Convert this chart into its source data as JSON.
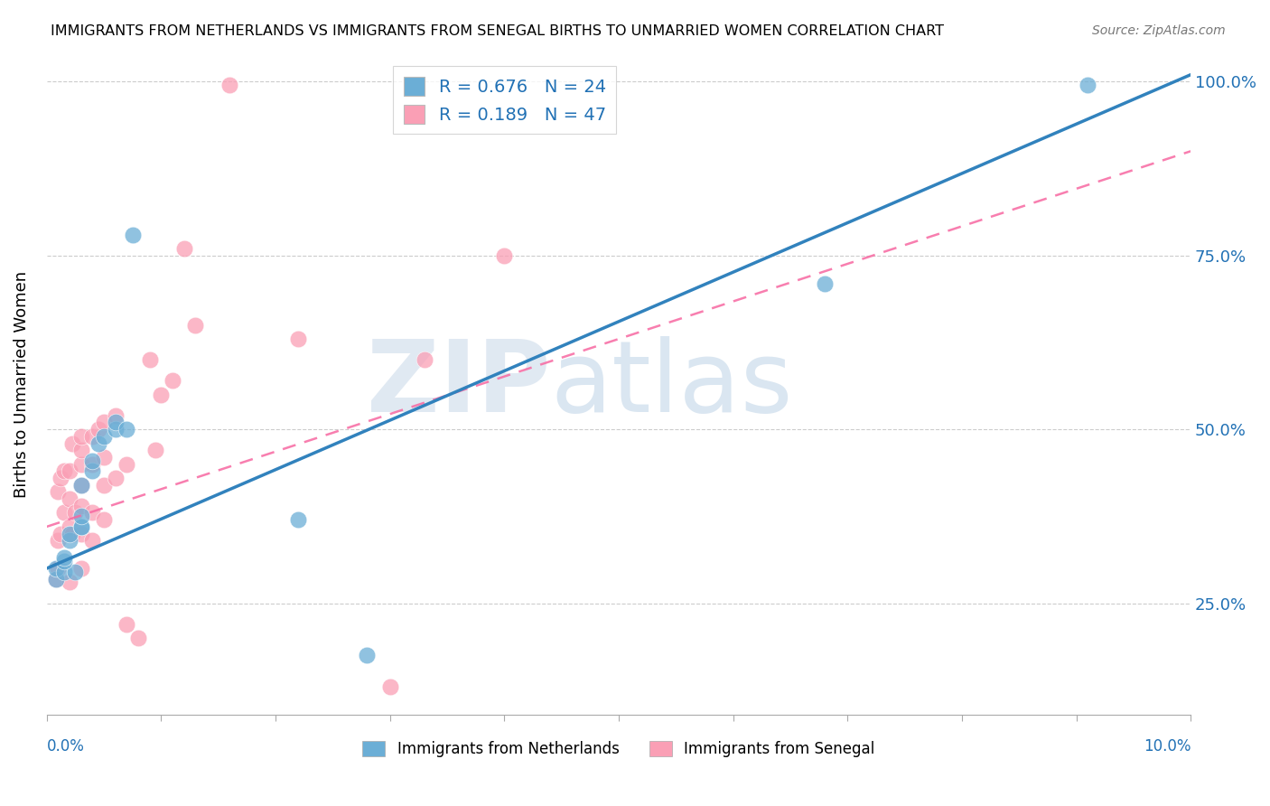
{
  "title": "IMMIGRANTS FROM NETHERLANDS VS IMMIGRANTS FROM SENEGAL BIRTHS TO UNMARRIED WOMEN CORRELATION CHART",
  "source": "Source: ZipAtlas.com",
  "ylabel": "Births to Unmarried Women",
  "r_netherlands": 0.676,
  "n_netherlands": 24,
  "r_senegal": 0.189,
  "n_senegal": 47,
  "color_netherlands": "#6baed6",
  "color_senegal": "#fa9fb5",
  "color_trendline_netherlands": "#3182bd",
  "color_trendline_senegal": "#f768a1",
  "watermark_zip": "ZIP",
  "watermark_atlas": "atlas",
  "xlim": [
    0.0,
    0.1
  ],
  "ylim": [
    0.09,
    1.04
  ],
  "yticks": [
    0.25,
    0.5,
    0.75,
    1.0
  ],
  "ytick_labels": [
    "25.0%",
    "50.0%",
    "75.0%",
    "100.0%"
  ],
  "nl_trend_x": [
    0.0,
    0.1
  ],
  "nl_trend_y": [
    0.3,
    1.01
  ],
  "sn_trend_x": [
    0.0,
    0.1
  ],
  "sn_trend_y": [
    0.36,
    0.9
  ],
  "netherlands_x": [
    0.0008,
    0.0008,
    0.0015,
    0.0025,
    0.0015,
    0.0015,
    0.002,
    0.002,
    0.003,
    0.003,
    0.003,
    0.003,
    0.004,
    0.004,
    0.0045,
    0.005,
    0.006,
    0.006,
    0.007,
    0.0075,
    0.022,
    0.028,
    0.068,
    0.091
  ],
  "netherlands_y": [
    0.285,
    0.3,
    0.295,
    0.295,
    0.31,
    0.315,
    0.34,
    0.35,
    0.36,
    0.36,
    0.375,
    0.42,
    0.44,
    0.455,
    0.48,
    0.49,
    0.5,
    0.51,
    0.5,
    0.78,
    0.37,
    0.175,
    0.71,
    0.995
  ],
  "senegal_x": [
    0.0008,
    0.001,
    0.001,
    0.001,
    0.0012,
    0.0012,
    0.0015,
    0.0015,
    0.002,
    0.002,
    0.002,
    0.002,
    0.0022,
    0.0022,
    0.0025,
    0.003,
    0.003,
    0.003,
    0.003,
    0.003,
    0.003,
    0.003,
    0.004,
    0.004,
    0.004,
    0.004,
    0.0045,
    0.005,
    0.005,
    0.005,
    0.005,
    0.006,
    0.006,
    0.007,
    0.007,
    0.008,
    0.009,
    0.0095,
    0.01,
    0.011,
    0.012,
    0.013,
    0.016,
    0.022,
    0.03,
    0.033,
    0.04
  ],
  "senegal_y": [
    0.285,
    0.3,
    0.34,
    0.41,
    0.35,
    0.43,
    0.38,
    0.44,
    0.28,
    0.36,
    0.4,
    0.44,
    0.35,
    0.48,
    0.38,
    0.3,
    0.35,
    0.39,
    0.42,
    0.45,
    0.47,
    0.49,
    0.34,
    0.38,
    0.45,
    0.49,
    0.5,
    0.37,
    0.42,
    0.46,
    0.51,
    0.43,
    0.52,
    0.22,
    0.45,
    0.2,
    0.6,
    0.47,
    0.55,
    0.57,
    0.76,
    0.65,
    0.995,
    0.63,
    0.13,
    0.6,
    0.75
  ]
}
